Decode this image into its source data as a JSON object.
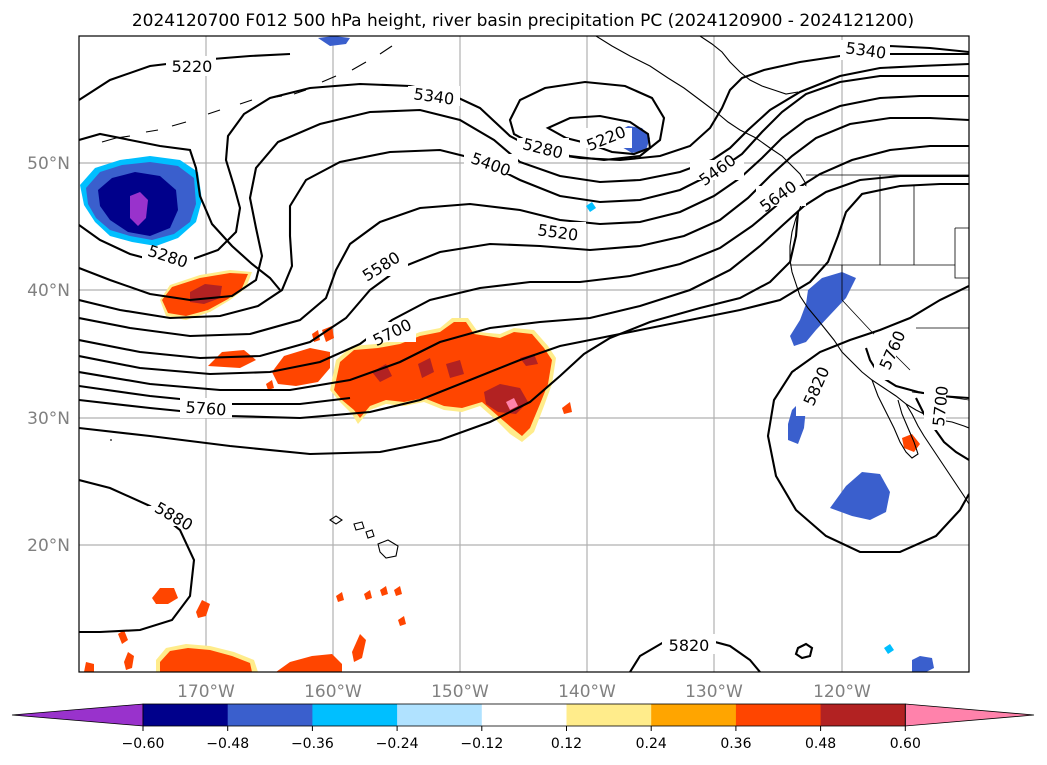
{
  "figure": {
    "title": "2024120700 F012 500 hPa height, river basin precipitation PC (2024120900 - 2024121200)",
    "lon_ticks": [
      "170°W",
      "160°W",
      "150°W",
      "140°W",
      "130°W",
      "120°W"
    ],
    "lat_ticks": [
      "50°N",
      "40°N",
      "30°N",
      "20°N"
    ],
    "extent": {
      "lon_min": -180,
      "lon_max": -110,
      "lat_min": 10,
      "lat_max": 60
    },
    "contour_labels": [
      "5220",
      "5340",
      "5340",
      "5280",
      "5220",
      "5400",
      "5460",
      "5640",
      "5520",
      "5280",
      "5580",
      "5700",
      "5760",
      "5880",
      "5820",
      "5760",
      "5700",
      "5820"
    ],
    "contour_levels": [
      5220,
      5280,
      5340,
      5400,
      5460,
      5520,
      5580,
      5640,
      5700,
      5760,
      5820,
      5880
    ]
  },
  "colorbar": {
    "tick_labels": [
      "−0.60",
      "−0.48",
      "−0.36",
      "−0.24",
      "−0.12",
      "0.12",
      "0.24",
      "0.36",
      "0.48",
      "0.60"
    ],
    "colors": [
      "#9932cc",
      "#00008b",
      "#3a5fcd",
      "#00bfff",
      "#b0e2ff",
      "#ffffff",
      "#ffec8b",
      "#ffa500",
      "#ff4500",
      "#b22222",
      "#ff82ab"
    ]
  }
}
